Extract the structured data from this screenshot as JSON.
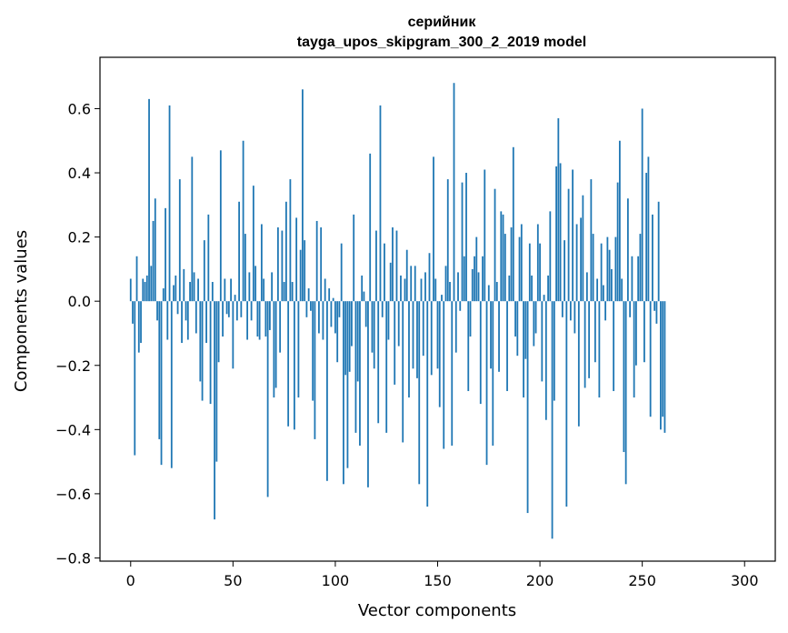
{
  "chart_data": {
    "type": "bar",
    "title_line1": "серийник",
    "title_line2": "tayga_upos_skipgram_300_2_2019 model",
    "xlabel": "Vector components",
    "ylabel": "Components values",
    "xlim": [
      -15,
      315
    ],
    "ylim": [
      -0.81,
      0.76
    ],
    "xticks": [
      0,
      50,
      100,
      150,
      200,
      250,
      300
    ],
    "xtick_labels": [
      "0",
      "50",
      "100",
      "150",
      "200",
      "250",
      "300"
    ],
    "yticks": [
      0.6,
      0.4,
      0.2,
      0.0,
      -0.2,
      -0.4,
      -0.6,
      -0.8
    ],
    "ytick_labels": [
      "0.6",
      "0.4",
      "0.2",
      "0.0",
      "−0.2",
      "−0.4",
      "−0.6",
      "−0.8"
    ],
    "bar_color": "#1f77b4",
    "grid": false,
    "values": [
      0.07,
      -0.07,
      -0.48,
      0.14,
      -0.16,
      -0.13,
      0.07,
      0.06,
      0.08,
      0.63,
      0.11,
      0.25,
      0.32,
      -0.06,
      -0.43,
      -0.51,
      0.04,
      0.29,
      -0.12,
      0.61,
      -0.52,
      0.05,
      0.08,
      -0.04,
      0.38,
      -0.13,
      0.1,
      -0.06,
      -0.12,
      0.06,
      0.45,
      0.09,
      -0.1,
      0.07,
      -0.25,
      -0.31,
      0.19,
      -0.13,
      0.27,
      -0.32,
      0.06,
      -0.68,
      -0.5,
      -0.19,
      0.47,
      -0.11,
      0.07,
      -0.04,
      -0.05,
      0.07,
      -0.21,
      0.02,
      -0.06,
      0.31,
      -0.05,
      0.5,
      0.21,
      -0.12,
      0.09,
      -0.06,
      0.36,
      0.11,
      -0.11,
      -0.12,
      0.24,
      0.07,
      -0.11,
      -0.61,
      -0.09,
      0.09,
      -0.3,
      -0.27,
      0.23,
      -0.16,
      0.22,
      0.06,
      0.31,
      -0.39,
      0.38,
      0.06,
      -0.4,
      0.26,
      -0.3,
      0.16,
      0.66,
      0.19,
      -0.05,
      0.04,
      -0.03,
      -0.31,
      -0.43,
      0.25,
      -0.1,
      0.23,
      -0.12,
      0.07,
      -0.56,
      0.04,
      -0.08,
      0.01,
      -0.1,
      -0.19,
      -0.05,
      0.18,
      -0.57,
      -0.23,
      -0.52,
      -0.22,
      -0.14,
      0.27,
      -0.41,
      -0.25,
      -0.45,
      0.08,
      0.03,
      -0.08,
      -0.58,
      0.46,
      -0.16,
      -0.21,
      0.22,
      -0.38,
      0.61,
      -0.05,
      0.18,
      -0.41,
      -0.12,
      0.12,
      0.23,
      -0.26,
      0.22,
      -0.14,
      0.08,
      -0.44,
      0.07,
      0.16,
      -0.3,
      0.11,
      -0.21,
      0.11,
      -0.24,
      -0.57,
      0.07,
      -0.17,
      0.09,
      -0.64,
      0.15,
      -0.23,
      0.45,
      0.07,
      -0.21,
      -0.33,
      0.02,
      -0.46,
      0.11,
      0.38,
      0.06,
      -0.45,
      0.68,
      -0.16,
      0.09,
      -0.03,
      0.37,
      0.14,
      0.4,
      -0.28,
      -0.11,
      0.1,
      0.14,
      0.2,
      0.09,
      -0.32,
      0.14,
      0.41,
      -0.51,
      0.05,
      -0.21,
      -0.45,
      0.35,
      0.06,
      -0.22,
      0.28,
      0.27,
      0.21,
      -0.28,
      0.08,
      0.23,
      0.48,
      -0.11,
      -0.17,
      0.2,
      0.24,
      -0.3,
      -0.18,
      -0.66,
      0.18,
      0.08,
      -0.14,
      -0.1,
      0.24,
      0.18,
      -0.25,
      0.02,
      -0.37,
      0.08,
      0.28,
      -0.74,
      -0.31,
      0.42,
      0.57,
      0.43,
      -0.05,
      0.19,
      -0.64,
      0.35,
      -0.06,
      0.41,
      -0.1,
      0.24,
      -0.39,
      0.26,
      0.33,
      -0.27,
      0.09,
      -0.24,
      0.38,
      0.21,
      -0.19,
      0.07,
      -0.3,
      0.18,
      0.05,
      -0.06,
      0.2,
      0.16,
      0.1,
      -0.28,
      0.2,
      0.37,
      0.5,
      0.07,
      -0.47,
      -0.57,
      0.32,
      -0.05,
      0.14,
      -0.3,
      -0.2,
      0.14,
      0.21,
      0.6,
      -0.19,
      0.4,
      0.45,
      -0.36,
      0.27,
      -0.03,
      -0.07,
      0.31,
      -0.4,
      -0.36,
      -0.41
    ]
  }
}
